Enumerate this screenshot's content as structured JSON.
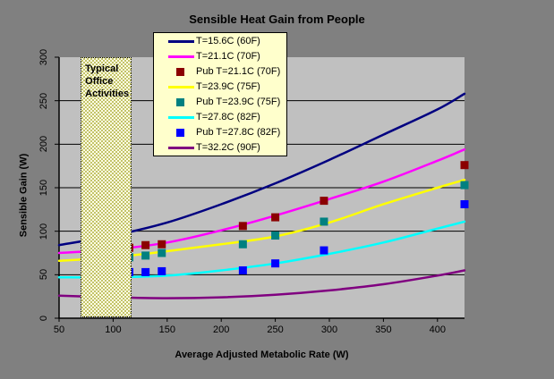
{
  "chart_data": {
    "type": "line",
    "title": "Sensible Heat Gain from People",
    "xlabel": "Average Adjusted Metabolic Rate (W)",
    "ylabel": "Sensible Gain (W)",
    "xlim": [
      50,
      425
    ],
    "ylim": [
      0,
      300
    ],
    "x_ticks": [
      50,
      100,
      150,
      200,
      250,
      300,
      350,
      400
    ],
    "y_ticks": [
      0,
      50,
      100,
      150,
      200,
      250,
      300
    ],
    "grid": true,
    "legend_position": "inside-top-left",
    "colors": {
      "outer_background": "#808080",
      "plot_background": "#c0c0c0",
      "legend_background": "#ffffcc",
      "gridline": "#000000",
      "band_light": "#ffffe4",
      "band_dark": "#c3c36a"
    },
    "annotation_band": {
      "label_lines": [
        "Typical",
        "Office",
        "Activities"
      ],
      "x_from": 70,
      "x_to": 117
    },
    "series": [
      {
        "name": "T=15.6C (60F)",
        "kind": "line",
        "color": "#000080",
        "points": [
          [
            50,
            84
          ],
          [
            100,
            95
          ],
          [
            150,
            110
          ],
          [
            200,
            131
          ],
          [
            250,
            155
          ],
          [
            300,
            182
          ],
          [
            350,
            211
          ],
          [
            400,
            240
          ],
          [
            425,
            258
          ]
        ]
      },
      {
        "name": "T=21.1C (70F)",
        "kind": "line",
        "color": "#ff00ff",
        "points": [
          [
            50,
            75
          ],
          [
            100,
            79
          ],
          [
            150,
            87
          ],
          [
            200,
            101
          ],
          [
            250,
            118
          ],
          [
            300,
            137
          ],
          [
            350,
            157
          ],
          [
            400,
            181
          ],
          [
            425,
            194
          ]
        ]
      },
      {
        "name": "Pub T=21.1C (70F)",
        "kind": "scatter",
        "color": "#8b0000",
        "points": [
          [
            115,
            81
          ],
          [
            130,
            84
          ],
          [
            145,
            85
          ],
          [
            220,
            106
          ],
          [
            250,
            116
          ],
          [
            295,
            135
          ],
          [
            425,
            176
          ]
        ]
      },
      {
        "name": "T=23.9C (75F)",
        "kind": "line",
        "color": "#ffff00",
        "points": [
          [
            50,
            66
          ],
          [
            100,
            70
          ],
          [
            150,
            77
          ],
          [
            200,
            85
          ],
          [
            250,
            94
          ],
          [
            300,
            110
          ],
          [
            350,
            131
          ],
          [
            400,
            150
          ],
          [
            425,
            159
          ]
        ]
      },
      {
        "name": "Pub T=23.9C (75F)",
        "kind": "scatter",
        "color": "#008080",
        "points": [
          [
            115,
            70
          ],
          [
            130,
            72
          ],
          [
            145,
            75
          ],
          [
            220,
            85
          ],
          [
            250,
            95
          ],
          [
            295,
            111
          ],
          [
            425,
            153
          ]
        ]
      },
      {
        "name": "T=27.8C (82F)",
        "kind": "line",
        "color": "#00ffff",
        "points": [
          [
            50,
            47
          ],
          [
            100,
            47
          ],
          [
            150,
            49
          ],
          [
            200,
            55
          ],
          [
            250,
            63
          ],
          [
            300,
            74
          ],
          [
            350,
            87
          ],
          [
            400,
            103
          ],
          [
            425,
            111
          ]
        ]
      },
      {
        "name": "Pub T=27.8C (82F)",
        "kind": "scatter",
        "color": "#0000ff",
        "points": [
          [
            115,
            53
          ],
          [
            130,
            53
          ],
          [
            145,
            54
          ],
          [
            220,
            55
          ],
          [
            250,
            63
          ],
          [
            295,
            78
          ],
          [
            425,
            131
          ]
        ]
      },
      {
        "name": "T=32.2C (90F)",
        "kind": "line",
        "color": "#800080",
        "points": [
          [
            50,
            26
          ],
          [
            100,
            24
          ],
          [
            150,
            23
          ],
          [
            200,
            24
          ],
          [
            250,
            27
          ],
          [
            300,
            32
          ],
          [
            350,
            39
          ],
          [
            400,
            49
          ],
          [
            425,
            55
          ]
        ]
      }
    ]
  }
}
